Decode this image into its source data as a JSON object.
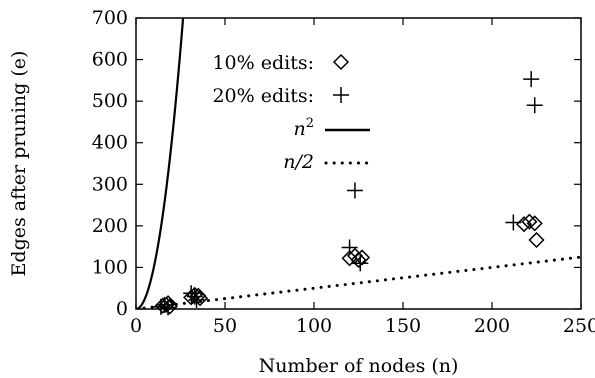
{
  "chart_data": {
    "type": "scatter",
    "title": "",
    "xlabel": "Number of nodes (n)",
    "ylabel": "Edges after pruning (e)",
    "xlim": [
      0,
      250
    ],
    "ylim": [
      0,
      700
    ],
    "xticks": [
      0,
      50,
      100,
      150,
      200,
      250
    ],
    "yticks": [
      0,
      100,
      200,
      300,
      400,
      500,
      600,
      700
    ],
    "grid": false,
    "legend_position": "top-left",
    "series": [
      {
        "name": "10% edits:",
        "marker": "diamond",
        "points": [
          [
            15,
            8
          ],
          [
            17,
            10
          ],
          [
            18,
            14
          ],
          [
            19,
            6
          ],
          [
            31,
            28
          ],
          [
            33,
            34
          ],
          [
            35,
            32
          ],
          [
            36,
            26
          ],
          [
            120,
            122
          ],
          [
            123,
            128
          ],
          [
            125,
            118
          ],
          [
            127,
            124
          ],
          [
            218,
            204
          ],
          [
            221,
            210
          ],
          [
            224,
            206
          ],
          [
            225,
            166
          ]
        ]
      },
      {
        "name": "20% edits:",
        "marker": "plus",
        "points": [
          [
            14,
            5
          ],
          [
            16,
            10
          ],
          [
            18,
            4
          ],
          [
            31,
            38
          ],
          [
            33,
            30
          ],
          [
            34,
            22
          ],
          [
            120,
            148
          ],
          [
            123,
            285
          ],
          [
            126,
            110
          ],
          [
            212,
            208
          ],
          [
            222,
            553
          ],
          [
            224,
            490
          ]
        ]
      },
      {
        "name": "n²",
        "style": "solid",
        "function": "n^2"
      },
      {
        "name": "n/2",
        "style": "dotted",
        "function": "n/2"
      }
    ]
  }
}
